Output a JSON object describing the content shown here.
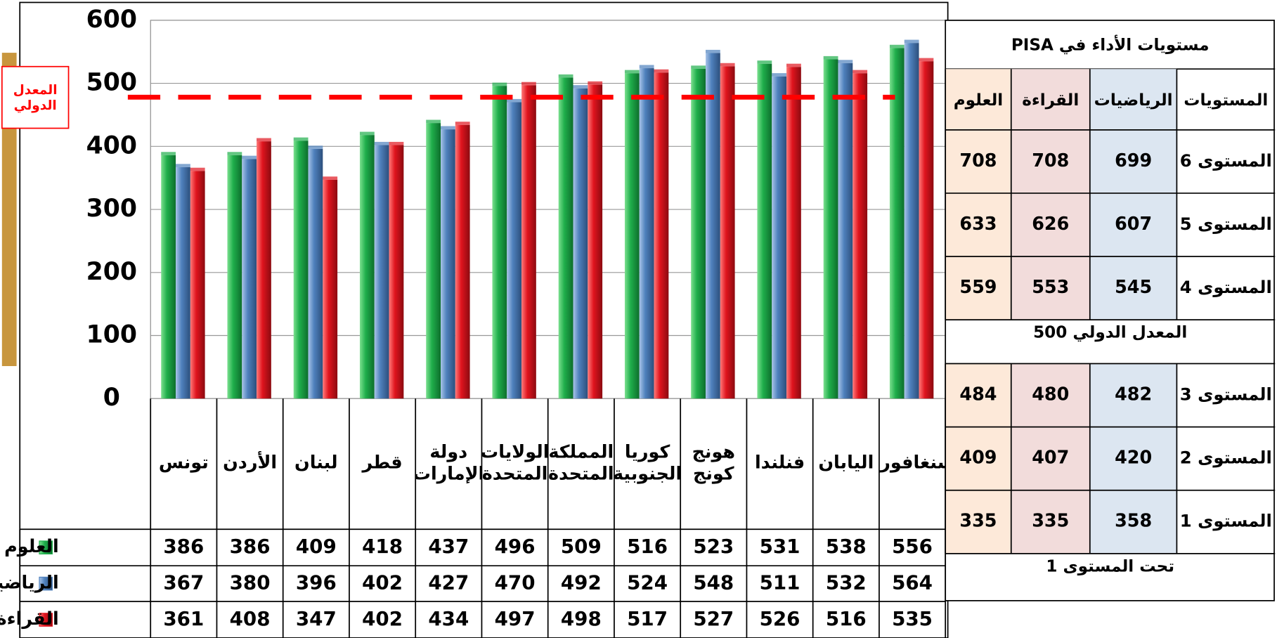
{
  "chart_data": {
    "type": "bar",
    "categories": [
      "تونس",
      "الأردن",
      "لبنان",
      "قطر",
      "دولة الإمارات",
      "الولايات المتحدة",
      "المملكة المتحدة",
      "كوريا الجنوبية",
      "هونج كونج",
      "فنلندا",
      "اليابان",
      "سنغافورة"
    ],
    "series": [
      {
        "name": "العلوم",
        "color": "#1fae4b",
        "values": [
          386,
          386,
          409,
          418,
          437,
          496,
          509,
          516,
          523,
          531,
          538,
          556
        ]
      },
      {
        "name": "الرياضيات",
        "color": "#4f81bd",
        "values": [
          367,
          380,
          396,
          402,
          427,
          470,
          492,
          524,
          548,
          511,
          532,
          564
        ]
      },
      {
        "name": "القراءة",
        "color": "#e0141e",
        "values": [
          361,
          408,
          347,
          402,
          434,
          497,
          498,
          517,
          527,
          526,
          516,
          535
        ]
      }
    ],
    "ylim": [
      0,
      600
    ],
    "yticks": [
      0,
      100,
      200,
      300,
      400,
      500,
      600
    ],
    "grid": true,
    "reference_line": {
      "value": 478,
      "label": "المعدل الدولي",
      "color": "#ff0000"
    }
  },
  "side_table": {
    "title": "مستويات الأداء في PISA",
    "header": [
      "المستويات",
      "الرياضيات",
      "القراءة",
      "العلوم"
    ],
    "rows_top": [
      [
        "المستوى 6",
        699,
        708,
        708
      ],
      [
        "المستوى 5",
        607,
        626,
        633
      ],
      [
        "المستوى 4",
        545,
        553,
        559
      ]
    ],
    "middle": "المعدل الدولي 500",
    "rows_bottom": [
      [
        "المستوى 3",
        482,
        480,
        484
      ],
      [
        "المستوى 2",
        420,
        407,
        409
      ],
      [
        "المستوى 1",
        358,
        335,
        335
      ]
    ],
    "footer": "تحت المستوى 1"
  }
}
